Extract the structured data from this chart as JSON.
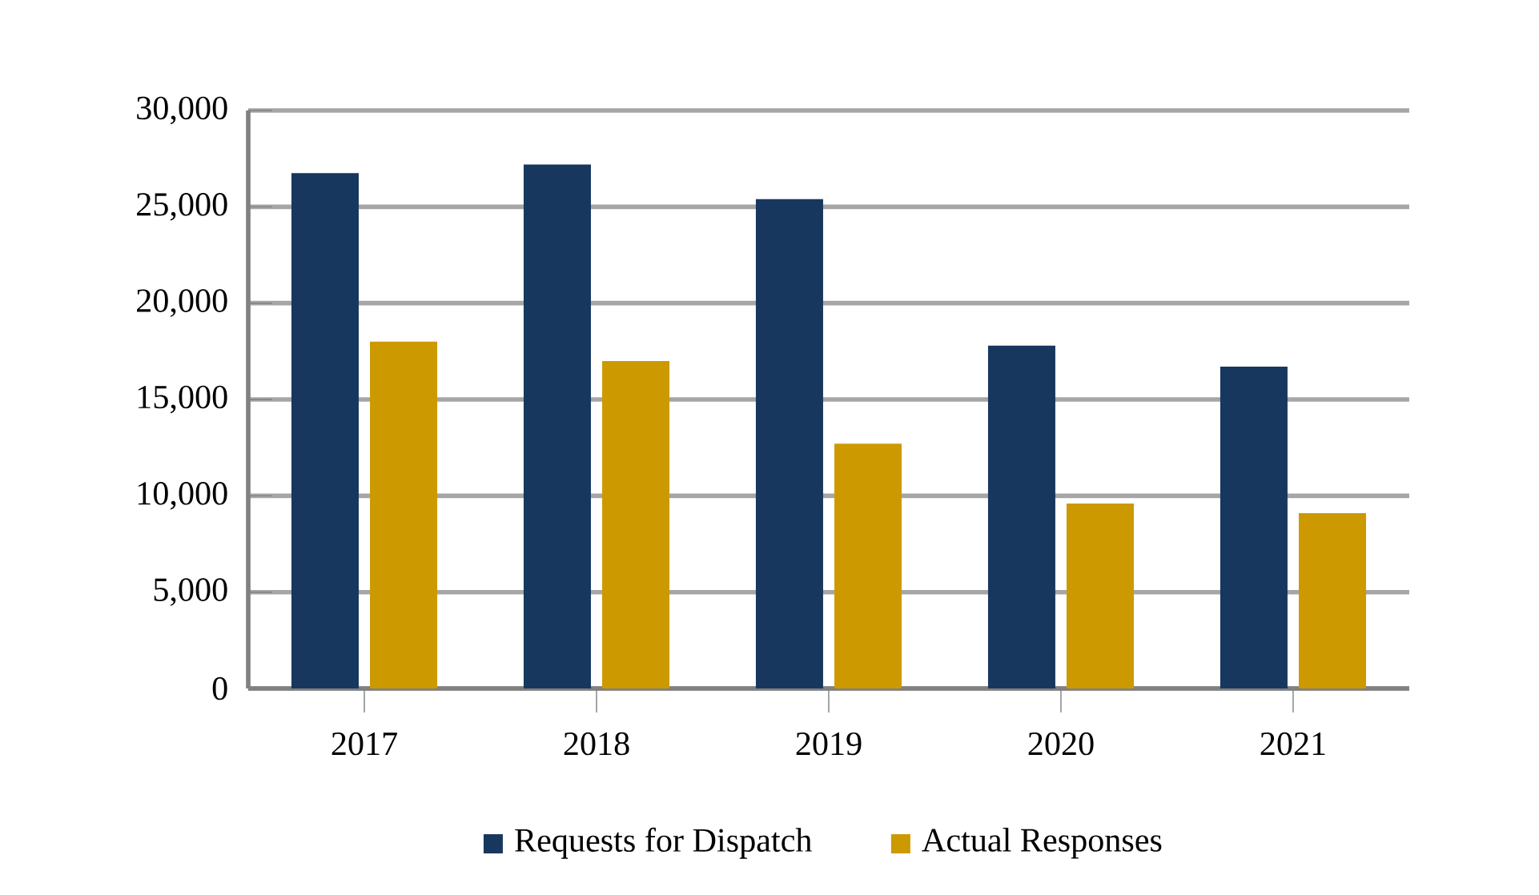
{
  "chart_data": {
    "type": "bar",
    "categories": [
      "2017",
      "2018",
      "2019",
      "2020",
      "2021"
    ],
    "series": [
      {
        "name": "Requests for Dispatch",
        "color": "#17375e",
        "values": [
          26750,
          27200,
          25400,
          17800,
          16700
        ]
      },
      {
        "name": "Actual Responses",
        "color": "#cc9900",
        "values": [
          18000,
          17000,
          12700,
          9600,
          9100
        ]
      }
    ],
    "ylim": [
      0,
      30000
    ],
    "yticks": [
      {
        "value": 0,
        "label": "0"
      },
      {
        "value": 5000,
        "label": "5,000"
      },
      {
        "value": 10000,
        "label": "10,000"
      },
      {
        "value": 15000,
        "label": "15,000"
      },
      {
        "value": 20000,
        "label": "20,000"
      },
      {
        "value": 25000,
        "label": "25,000"
      },
      {
        "value": 30000,
        "label": "30,000"
      }
    ],
    "grid": "y",
    "legend": "bottom"
  }
}
